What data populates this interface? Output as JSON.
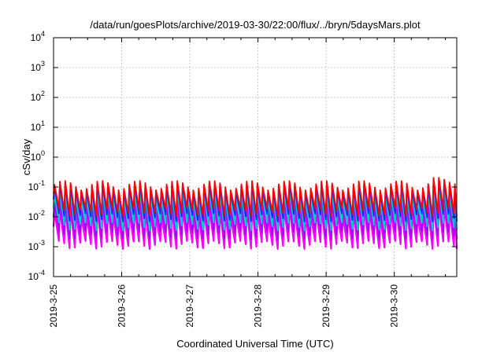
{
  "chart_data": {
    "type": "line",
    "title": "/data/run/goesPlots/archive/2019-03-30/22:00/flux/../bryn/5daysMars.plot",
    "xlabel": "Coordinated Universal Time (UTC)",
    "ylabel": "cSv/day",
    "y_scale": "log",
    "ylim": [
      0.0001,
      10000
    ],
    "y_ticks": [
      {
        "value": 0.0001,
        "base": "10",
        "exp": "-4"
      },
      {
        "value": 0.001,
        "base": "10",
        "exp": "-3"
      },
      {
        "value": 0.01,
        "base": "10",
        "exp": "-2"
      },
      {
        "value": 0.1,
        "base": "10",
        "exp": "-1"
      },
      {
        "value": 1,
        "base": "10",
        "exp": "0"
      },
      {
        "value": 10,
        "base": "10",
        "exp": "1"
      },
      {
        "value": 100,
        "base": "10",
        "exp": "2"
      },
      {
        "value": 1000,
        "base": "10",
        "exp": "3"
      },
      {
        "value": 10000,
        "base": "10",
        "exp": "4"
      }
    ],
    "x_range": [
      "2019-03-25 00:00",
      "2019-03-30 22:00"
    ],
    "x_tick_labels": [
      "2019-3-25",
      "2019-3-26",
      "2019-3-27",
      "2019-3-28",
      "2019-3-29",
      "2019-3-30"
    ],
    "grid": true,
    "orbit_period_hours": 1.88,
    "series": [
      {
        "color": "#ff0000",
        "peak_level": 0.12,
        "trough_level": 0.015
      },
      {
        "color": "#2020ff",
        "peak_level": 0.1,
        "trough_level": 0.01
      },
      {
        "color": "#00cccc",
        "peak_level": 0.06,
        "trough_level": 0.005
      },
      {
        "color": "#aa00ff",
        "peak_level": 0.03,
        "trough_level": 0.0025
      },
      {
        "color": "#ff00ff",
        "peak_level": 0.015,
        "trough_level": 0.0012
      }
    ],
    "colors": {
      "grid": "#aaaaaa",
      "axis": "#000000"
    }
  }
}
